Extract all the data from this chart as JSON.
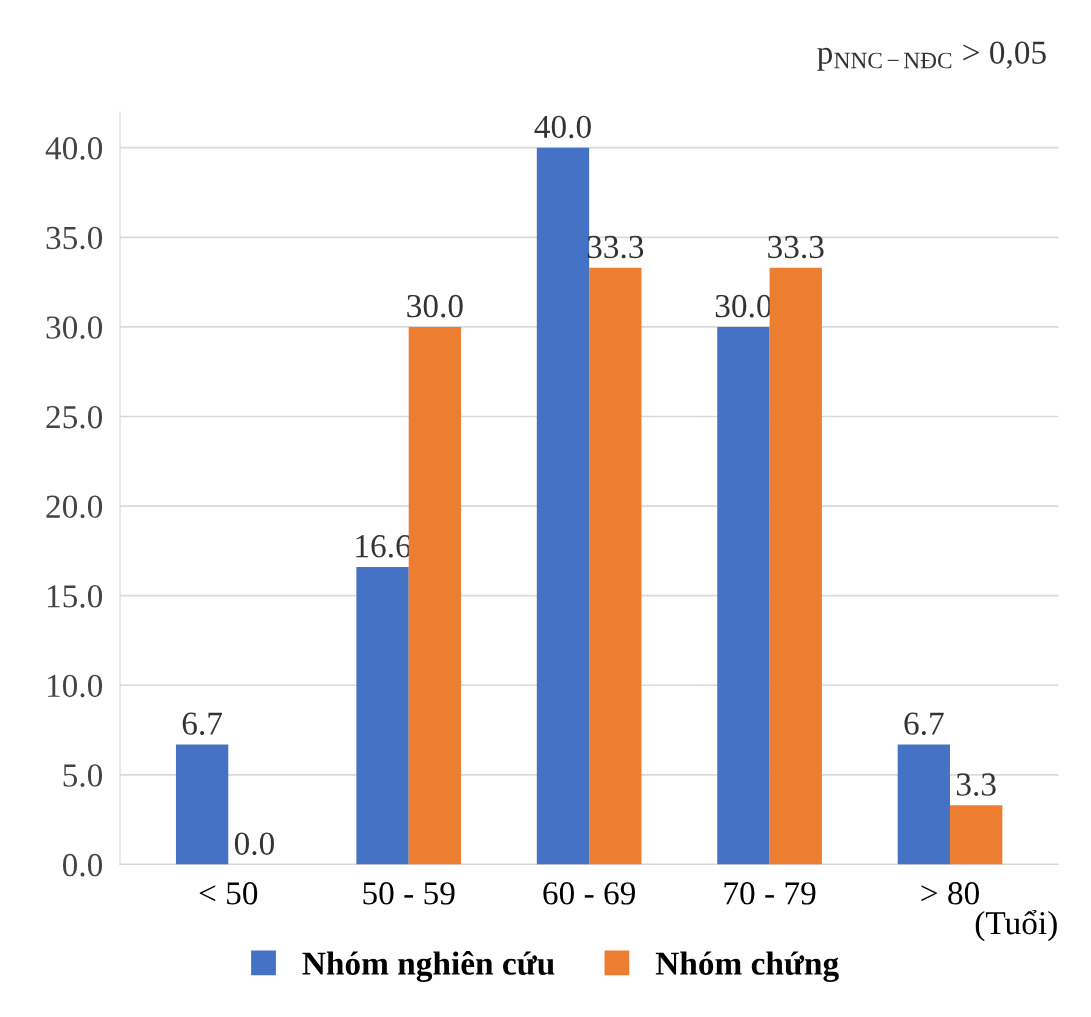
{
  "chart_data": {
    "type": "bar",
    "categories": [
      "< 50",
      "50 - 59",
      "60 - 69",
      "70 - 79",
      "> 80"
    ],
    "xlabel": "(Tuổi)",
    "series": [
      {
        "name": "Nhóm nghiên cứu",
        "color": "#4472c4",
        "values": [
          6.7,
          16.6,
          40.0,
          30.0,
          6.7
        ],
        "value_labels": [
          "6.7",
          "16.6",
          "40.0",
          "30.0",
          "6.7"
        ]
      },
      {
        "name": "Nhóm chứng",
        "color": "#ed7d31",
        "values": [
          0.0,
          30.0,
          33.3,
          33.3,
          3.3
        ],
        "value_labels": [
          "0.0",
          "30.0",
          "33.3",
          "33.3",
          "3.3"
        ]
      }
    ],
    "ylim": [
      0,
      42
    ],
    "yticks": [
      {
        "value": 0,
        "label": "0.0"
      },
      {
        "value": 5,
        "label": "5.0"
      },
      {
        "value": 10,
        "label": "10.0"
      },
      {
        "value": 15,
        "label": "15.0"
      },
      {
        "value": 20,
        "label": "20.0"
      },
      {
        "value": 25,
        "label": "25.0"
      },
      {
        "value": 30,
        "label": "30.0"
      },
      {
        "value": 35,
        "label": "35.0"
      },
      {
        "value": 40,
        "label": "40.0"
      }
    ],
    "grid": "y",
    "legend": "bottom",
    "annotations": [
      "p$_{NNC−NĐC}$ > 0,05"
    ]
  }
}
